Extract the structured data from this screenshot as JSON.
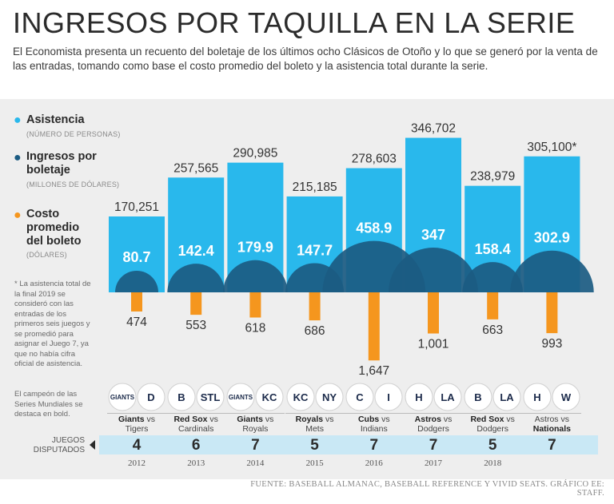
{
  "title": "INGRESOS POR TAQUILLA EN LA SERIE",
  "subtitle": "El Economista presenta un recuento del boletaje de los últimos ocho Clásicos de Otoño y lo que se generó por la venta de las entradas, tomando como base el costo promedio del boleto y la asistencia total durante la serie.",
  "legend": {
    "attendance_title": "Asistencia",
    "attendance_sub": "(NÚMERO DE PERSONAS)",
    "revenue_title": "Ingresos por boletaje",
    "revenue_sub": "(MILLONES DE DÓLARES)",
    "cost_title": "Costo promedio del boleto",
    "cost_sub": "(DÓLARES)"
  },
  "note_2019": "* La asistencia total de la final 2019 se consideró con las entradas de los primeros seis juegos y se promedió para asignar el Juego 7, ya que no había cifra oficial de asistencia.",
  "note_champion": "El campeón de las Series Mundiales se destaca en bold.",
  "games_label": "JUEGOS DISPUTADOS",
  "vs_word": "vs",
  "footer": "FUENTE: BASEBALL ALMANAC, BASEBALL REFERENCE Y VIVID SEATS. GRÁFICO EE: STAFF.",
  "colors": {
    "attendance": "#29b8ec",
    "revenue": "#1b5b82",
    "cost": "#f5961e",
    "band": "#eeeeee",
    "games_strip": "#c9e8f5"
  },
  "chart_data": {
    "type": "bar",
    "title": "INGRESOS POR TAQUILLA EN LA SERIE",
    "categories": [
      "2012",
      "2013",
      "2014",
      "2015",
      "2016",
      "2017",
      "2018",
      "2019"
    ],
    "series": [
      {
        "name": "Asistencia",
        "unit": "número de personas",
        "values": [
          170251,
          257565,
          290985,
          215185,
          278603,
          346702,
          238979,
          305100
        ],
        "labels": [
          "170,251",
          "257,565",
          "290,985",
          "215,185",
          "278,603",
          "346,702",
          "238,979",
          "305,100*"
        ]
      },
      {
        "name": "Ingresos por boletaje",
        "unit": "millones de dólares",
        "values": [
          80.7,
          142.4,
          179.9,
          147.7,
          458.9,
          347,
          158.4,
          302.9
        ],
        "labels": [
          "80.7",
          "142.4",
          "179.9",
          "147.7",
          "458.9",
          "347",
          "158.4",
          "302.9"
        ]
      },
      {
        "name": "Costo promedio del boleto",
        "unit": "dólares",
        "values": [
          474,
          553,
          618,
          686,
          1647,
          1001,
          663,
          993
        ],
        "labels": [
          "474",
          "553",
          "618",
          "686",
          "1,647",
          "1,001",
          "663",
          "993"
        ]
      }
    ],
    "matchups": [
      {
        "year": "2012",
        "team1": "Giants",
        "team2": "Tigers",
        "champion": "Giants",
        "logo1": "GIANTS",
        "logo2": "D",
        "games": 4
      },
      {
        "year": "2013",
        "team1": "Red Sox",
        "team2": "Cardinals",
        "champion": "Red Sox",
        "logo1": "B",
        "logo2": "STL",
        "games": 6
      },
      {
        "year": "2014",
        "team1": "Giants",
        "team2": "Royals",
        "champion": "Giants",
        "logo1": "GIANTS",
        "logo2": "KC",
        "games": 7
      },
      {
        "year": "2015",
        "team1": "Royals",
        "team2": "Mets",
        "champion": "Royals",
        "logo1": "KC",
        "logo2": "NY",
        "games": 5
      },
      {
        "year": "2016",
        "team1": "Cubs",
        "team2": "Indians",
        "champion": "Cubs",
        "logo1": "C",
        "logo2": "I",
        "games": 7
      },
      {
        "year": "2017",
        "team1": "Astros",
        "team2": "Dodgers",
        "champion": "Astros",
        "logo1": "H",
        "logo2": "LA",
        "games": 7
      },
      {
        "year": "2018",
        "team1": "Red Sox",
        "team2": "Dodgers",
        "champion": "Red Sox",
        "logo1": "B",
        "logo2": "LA",
        "games": 5
      },
      {
        "year": "2019",
        "team1": "Astros",
        "team2": "Nationals",
        "champion": "Nationals",
        "logo1": "H",
        "logo2": "W",
        "games": 7
      }
    ]
  }
}
